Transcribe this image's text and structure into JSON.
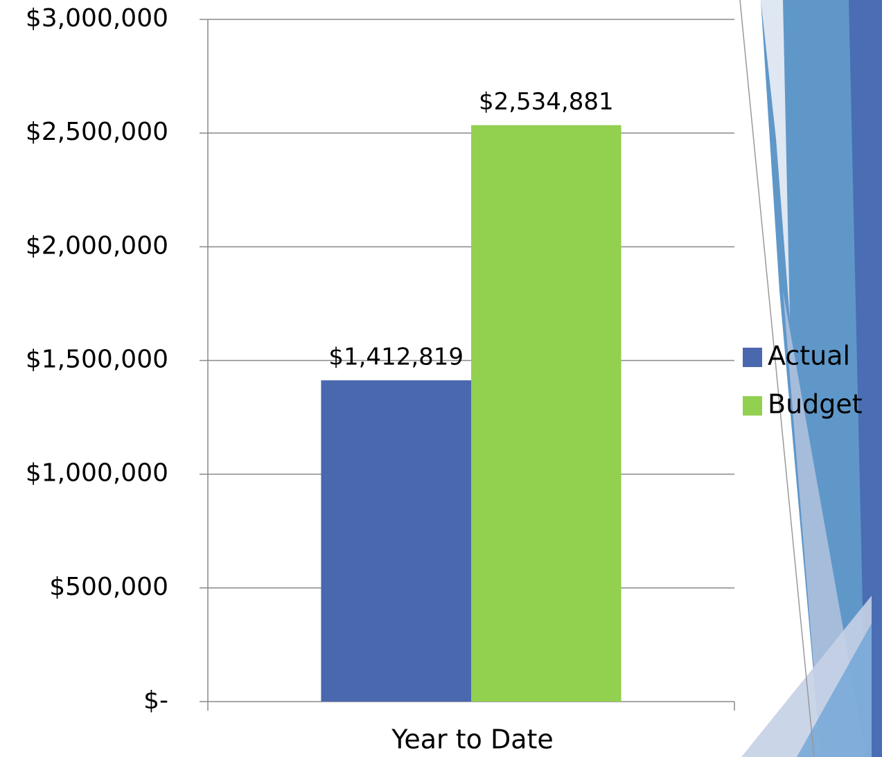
{
  "chart_data": {
    "type": "bar",
    "categories": [
      "Year to Date"
    ],
    "series": [
      {
        "name": "Actual",
        "color": "#4a68ae",
        "values": [
          1412819
        ],
        "value_labels": [
          "$1,412,819"
        ]
      },
      {
        "name": "Budget",
        "color": "#92d050",
        "values": [
          2534881
        ],
        "value_labels": [
          "$2,534,881"
        ]
      }
    ],
    "ylim": [
      0,
      3000000
    ],
    "yticks": [
      {
        "value": 0,
        "label": "$-"
      },
      {
        "value": 500000,
        "label": "$500,000"
      },
      {
        "value": 1000000,
        "label": "$1,000,000"
      },
      {
        "value": 1500000,
        "label": "$1,500,000"
      },
      {
        "value": 2000000,
        "label": "$2,000,000"
      },
      {
        "value": 2500000,
        "label": "$2,500,000"
      },
      {
        "value": 3000000,
        "label": "$3,000,000"
      }
    ],
    "grid": true,
    "legend": "right"
  }
}
